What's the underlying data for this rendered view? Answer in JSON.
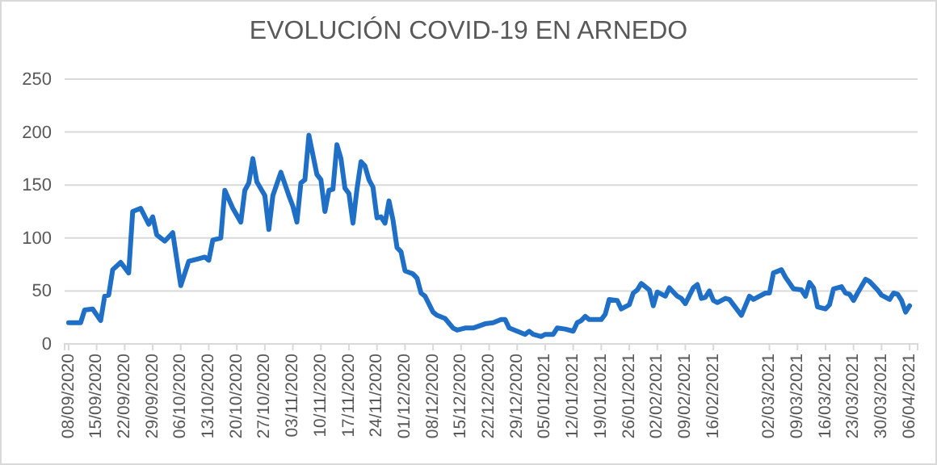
{
  "chart_data": {
    "type": "line",
    "title": "EVOLUCIÓN COVID-19 EN ARNEDO",
    "x": [
      "2020-09-08",
      "2020-09-11",
      "2020-09-12",
      "2020-09-14",
      "2020-09-16",
      "2020-09-17",
      "2020-09-18",
      "2020-09-19",
      "2020-09-21",
      "2020-09-23",
      "2020-09-24",
      "2020-09-26",
      "2020-09-28",
      "2020-09-29",
      "2020-09-30",
      "2020-10-02",
      "2020-10-04",
      "2020-10-06",
      "2020-10-08",
      "2020-10-10",
      "2020-10-12",
      "2020-10-13",
      "2020-10-14",
      "2020-10-16",
      "2020-10-17",
      "2020-10-19",
      "2020-10-21",
      "2020-10-22",
      "2020-10-23",
      "2020-10-24",
      "2020-10-25",
      "2020-10-27",
      "2020-10-28",
      "2020-10-29",
      "2020-10-31",
      "2020-11-02",
      "2020-11-03",
      "2020-11-04",
      "2020-11-05",
      "2020-11-06",
      "2020-11-07",
      "2020-11-09",
      "2020-11-10",
      "2020-11-11",
      "2020-11-12",
      "2020-11-13",
      "2020-11-14",
      "2020-11-15",
      "2020-11-16",
      "2020-11-17",
      "2020-11-18",
      "2020-11-19",
      "2020-11-20",
      "2020-11-21",
      "2020-11-22",
      "2020-11-23",
      "2020-11-24",
      "2020-11-25",
      "2020-11-26",
      "2020-11-27",
      "2020-11-28",
      "2020-11-29",
      "2020-11-30",
      "2020-12-01",
      "2020-12-03",
      "2020-12-04",
      "2020-12-05",
      "2020-12-06",
      "2020-12-08",
      "2020-12-09",
      "2020-12-11",
      "2020-12-13",
      "2020-12-14",
      "2020-12-16",
      "2020-12-18",
      "2020-12-21",
      "2020-12-23",
      "2020-12-25",
      "2020-12-26",
      "2020-12-27",
      "2020-12-29",
      "2020-12-31",
      "2021-01-01",
      "2021-01-02",
      "2021-01-04",
      "2021-01-05",
      "2021-01-07",
      "2021-01-08",
      "2021-01-10",
      "2021-01-12",
      "2021-01-13",
      "2021-01-14",
      "2021-01-15",
      "2021-01-16",
      "2021-01-19",
      "2021-01-20",
      "2021-01-21",
      "2021-01-23",
      "2021-01-24",
      "2021-01-26",
      "2021-01-27",
      "2021-01-28",
      "2021-01-29",
      "2021-01-31",
      "2021-02-01",
      "2021-02-02",
      "2021-02-04",
      "2021-02-05",
      "2021-02-07",
      "2021-02-08",
      "2021-02-09",
      "2021-02-11",
      "2021-02-12",
      "2021-02-13",
      "2021-02-14",
      "2021-02-15",
      "2021-02-16",
      "2021-02-17",
      "2021-02-19",
      "2021-02-20",
      "2021-02-23",
      "2021-02-25",
      "2021-02-26",
      "2021-03-01",
      "2021-03-02",
      "2021-03-03",
      "2021-03-05",
      "2021-03-06",
      "2021-03-08",
      "2021-03-10",
      "2021-03-11",
      "2021-03-12",
      "2021-03-13",
      "2021-03-14",
      "2021-03-16",
      "2021-03-17",
      "2021-03-18",
      "2021-03-20",
      "2021-03-21",
      "2021-03-22",
      "2021-03-23",
      "2021-03-24",
      "2021-03-26",
      "2021-03-27",
      "2021-03-29",
      "2021-03-30",
      "2021-04-01",
      "2021-04-02",
      "2021-04-03",
      "2021-04-04",
      "2021-04-05",
      "2021-04-06"
    ],
    "series": [
      {
        "color": "#1f6fc6",
        "values": [
          20,
          20,
          32,
          33,
          22,
          45,
          46,
          70,
          77,
          67,
          125,
          128,
          113,
          120,
          103,
          97,
          105,
          55,
          78,
          80,
          82,
          79,
          98,
          100,
          145,
          128,
          115,
          145,
          152,
          175,
          153,
          140,
          108,
          140,
          162,
          140,
          130,
          115,
          152,
          155,
          197,
          160,
          155,
          125,
          145,
          146,
          188,
          175,
          147,
          142,
          114,
          146,
          172,
          168,
          155,
          148,
          119,
          120,
          114,
          135,
          117,
          91,
          87,
          69,
          66,
          62,
          48,
          45,
          30,
          27,
          24,
          15,
          13,
          15,
          15,
          19,
          20,
          23,
          23,
          15,
          12,
          9,
          12,
          9,
          7,
          9,
          9,
          15,
          14,
          12,
          20,
          22,
          26,
          23,
          23,
          28,
          42,
          41,
          33,
          37,
          48,
          51,
          57,
          51,
          36,
          49,
          45,
          53,
          45,
          43,
          38,
          53,
          56,
          43,
          44,
          50,
          41,
          39,
          43,
          42,
          27,
          45,
          42,
          48,
          48,
          67,
          70,
          63,
          52,
          51,
          45,
          58,
          53,
          35,
          33,
          37,
          52,
          54,
          48,
          47,
          41,
          48,
          61,
          59,
          51,
          46,
          42,
          48,
          47,
          41,
          30,
          36
        ]
      }
    ],
    "xlim": [
      "2020-09-07",
      "2021-04-08"
    ],
    "xticks": [
      {
        "value": "2020-09-08",
        "label": "08/09/2020"
      },
      {
        "value": "2020-09-15",
        "label": "15/09/2020"
      },
      {
        "value": "2020-09-22",
        "label": "22/09/2020"
      },
      {
        "value": "2020-09-29",
        "label": "29/09/2020"
      },
      {
        "value": "2020-10-06",
        "label": "06/10/2020"
      },
      {
        "value": "2020-10-13",
        "label": "13/10/2020"
      },
      {
        "value": "2020-10-20",
        "label": "20/10/2020"
      },
      {
        "value": "2020-10-27",
        "label": "27/10/2020"
      },
      {
        "value": "2020-11-03",
        "label": "03/11/2020"
      },
      {
        "value": "2020-11-10",
        "label": "10/11/2020"
      },
      {
        "value": "2020-11-17",
        "label": "17/11/2020"
      },
      {
        "value": "2020-11-24",
        "label": "24/11/2020"
      },
      {
        "value": "2020-12-01",
        "label": "01/12/2020"
      },
      {
        "value": "2020-12-08",
        "label": "08/12/2020"
      },
      {
        "value": "2020-12-15",
        "label": "15/12/2020"
      },
      {
        "value": "2020-12-22",
        "label": "22/12/2020"
      },
      {
        "value": "2020-12-29",
        "label": "29/12/2020"
      },
      {
        "value": "2021-01-05",
        "label": "05/01/2021"
      },
      {
        "value": "2021-01-12",
        "label": "12/01/2021"
      },
      {
        "value": "2021-01-19",
        "label": "19/01/2021"
      },
      {
        "value": "2021-01-26",
        "label": "26/01/2021"
      },
      {
        "value": "2021-02-02",
        "label": "02/02/2021"
      },
      {
        "value": "2021-02-09",
        "label": "09/02/2021"
      },
      {
        "value": "2021-02-16",
        "label": "16/02/2021"
      },
      {
        "value": "2021-03-02",
        "label": "02/03/2021"
      },
      {
        "value": "2021-03-09",
        "label": "09/03/2021"
      },
      {
        "value": "2021-03-16",
        "label": "16/03/2021"
      },
      {
        "value": "2021-03-23",
        "label": "23/03/2021"
      },
      {
        "value": "2021-03-30",
        "label": "30/03/2021"
      },
      {
        "value": "2021-04-06",
        "label": "06/04/2021"
      }
    ],
    "ylim": [
      0,
      250
    ],
    "yticks": [
      0,
      50,
      100,
      150,
      200,
      250
    ],
    "grid": "y",
    "marker": "none",
    "line_style": "solid"
  }
}
